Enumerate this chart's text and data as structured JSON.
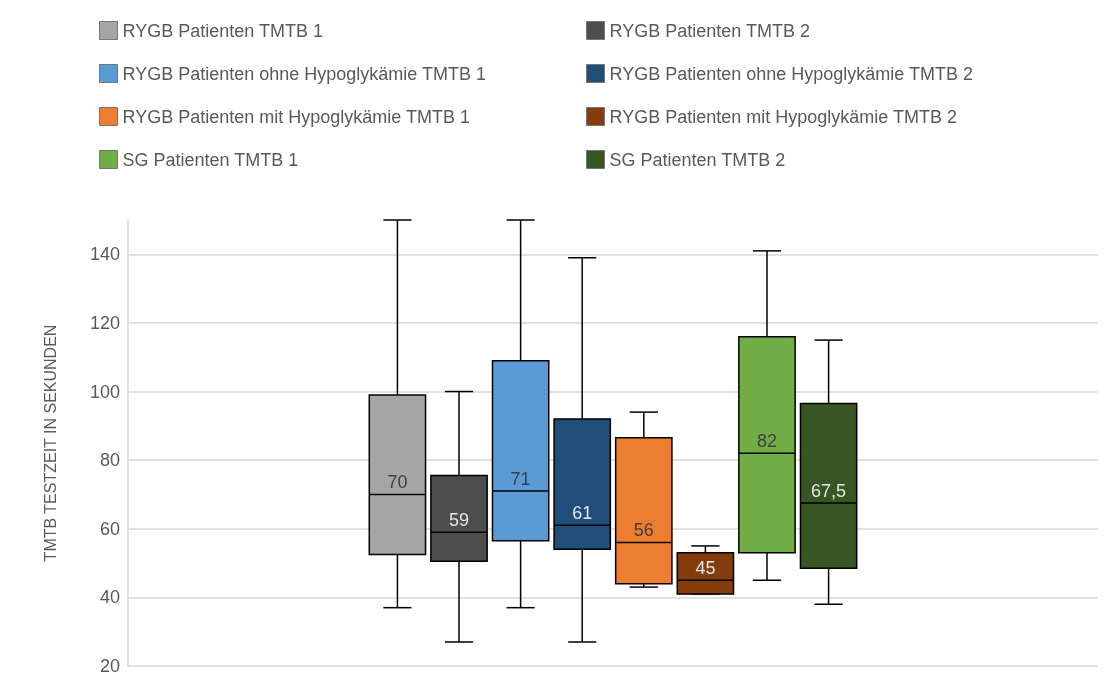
{
  "chart_data": {
    "type": "box",
    "ylabel": "TMTB TESTZEIT IN SEKUNDEN",
    "categories": [
      null
    ],
    "ylim": [
      20,
      150
    ],
    "yticks": [
      20,
      40,
      60,
      80,
      100,
      120,
      140
    ],
    "grid": "y",
    "legend": "top",
    "series": [
      {
        "name": "RYGB Patienten TMTB 1",
        "color": "#a5a5a5",
        "boxes": [
          {
            "low": 37,
            "q1": 52.5,
            "median": 70,
            "q3": 99,
            "high": 150
          }
        ],
        "value_labels": [
          "70"
        ]
      },
      {
        "name": "RYGB Patienten TMTB 2",
        "color": "#4d4d4d",
        "boxes": [
          {
            "low": 27,
            "q1": 50.5,
            "median": 59,
            "q3": 75.5,
            "high": 100
          }
        ],
        "value_labels": [
          "59"
        ]
      },
      {
        "name": "RYGB Patienten ohne Hypoglykämie TMTB 1",
        "color": "#5b9bd5",
        "boxes": [
          {
            "low": 37,
            "q1": 56.5,
            "median": 71,
            "q3": 109,
            "high": 150
          }
        ],
        "value_labels": [
          "71"
        ]
      },
      {
        "name": "RYGB Patienten ohne Hypoglykämie TMTB 2",
        "color": "#1f4e79",
        "boxes": [
          {
            "low": 27,
            "q1": 54,
            "median": 61,
            "q3": 92,
            "high": 139
          }
        ],
        "value_labels": [
          "61"
        ]
      },
      {
        "name": "RYGB Patienten mit Hypoglykämie TMTB 1",
        "color": "#ed7d31",
        "boxes": [
          {
            "low": 43,
            "q1": 44,
            "median": 56,
            "q3": 86.5,
            "high": 94
          }
        ],
        "value_labels": [
          "56"
        ]
      },
      {
        "name": "RYGB Patienten mit Hypoglykämie TMTB 2",
        "color": "#843c0c",
        "boxes": [
          {
            "low": 41,
            "q1": 41,
            "median": 45,
            "q3": 53,
            "high": 55
          }
        ],
        "value_labels": [
          "45"
        ]
      },
      {
        "name": "SG Patienten TMTB 1",
        "color": "#70ad47",
        "boxes": [
          {
            "low": 45,
            "q1": 53,
            "median": 82,
            "q3": 116,
            "high": 141
          }
        ],
        "value_labels": [
          "82"
        ]
      },
      {
        "name": "SG Patienten TMTB 2",
        "color": "#375623",
        "boxes": [
          {
            "low": 38,
            "q1": 48.5,
            "median": 67.5,
            "q3": 96.5,
            "high": 115
          }
        ],
        "value_labels": [
          "67,5"
        ]
      }
    ]
  }
}
